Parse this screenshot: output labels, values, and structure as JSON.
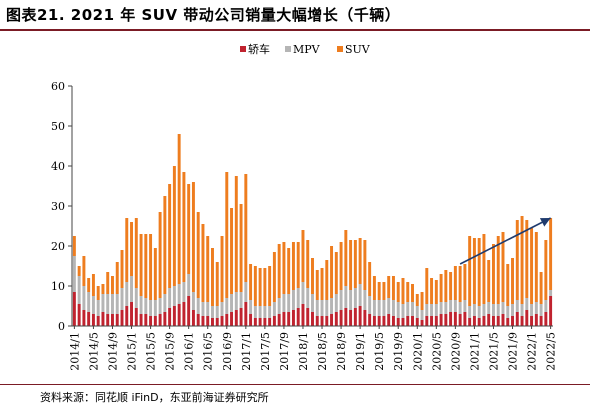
{
  "header": {
    "title": "图表21. 2021 年 SUV 带动公司销量大幅增长（千辆）"
  },
  "footer": {
    "source": "资料来源：同花顺 iFinD，东亚前海证券研究所"
  },
  "colors": {
    "sedan": "#c0232f",
    "mpv": "#b5b5b5",
    "suv": "#ee7d1f",
    "trend_arrow": "#1f3b6e",
    "axis": "#444444",
    "frame": "#7b1b25"
  },
  "chart_data": {
    "type": "bar",
    "stacked": true,
    "title": "",
    "xlabel": "",
    "ylabel": "",
    "ylim": [
      0,
      60
    ],
    "yticks": [
      0,
      10,
      20,
      30,
      40,
      50,
      60
    ],
    "grid": false,
    "legend_position": "top-center",
    "start_month": "2014-01",
    "periods": 101,
    "xtick_labels": [
      "2014/1",
      "2014/5",
      "2014/9",
      "2015/1",
      "2015/5",
      "2015/9",
      "2016/1",
      "2016/5",
      "2016/9",
      "2017/1",
      "2017/5",
      "2017/9",
      "2018/1",
      "2018/5",
      "2018/9",
      "2019/1",
      "2019/5",
      "2019/9",
      "2020/1",
      "2020/5",
      "2020/9",
      "2021/1",
      "2021/5",
      "2021/9",
      "2022/1",
      "2022/5"
    ],
    "series": [
      {
        "name": "轿车",
        "key": "sedan",
        "values": [
          8.5,
          5.5,
          4.0,
          3.5,
          3.0,
          2.5,
          3.5,
          3.0,
          3.0,
          3.0,
          4.0,
          5.0,
          6.0,
          4.5,
          3.0,
          3.0,
          2.5,
          2.5,
          3.0,
          3.5,
          4.5,
          5.0,
          5.5,
          6.0,
          7.5,
          4.0,
          3.0,
          2.5,
          2.5,
          2.0,
          2.0,
          2.5,
          3.0,
          3.5,
          4.0,
          4.5,
          6.0,
          3.0,
          2.0,
          2.0,
          2.0,
          2.0,
          2.5,
          3.0,
          3.5,
          3.5,
          4.0,
          4.5,
          5.5,
          4.5,
          3.5,
          2.5,
          2.5,
          2.5,
          3.0,
          3.5,
          4.0,
          4.5,
          4.0,
          4.5,
          5.0,
          4.0,
          3.0,
          2.5,
          2.5,
          2.5,
          3.0,
          2.5,
          2.0,
          2.0,
          2.5,
          2.5,
          2.0,
          1.5,
          2.5,
          2.5,
          2.5,
          3.0,
          3.0,
          3.5,
          3.5,
          3.0,
          3.5,
          2.0,
          2.5,
          2.0,
          2.5,
          3.0,
          2.5,
          2.5,
          3.0,
          2.0,
          2.5,
          3.5,
          2.5,
          4.0,
          2.5,
          3.0,
          2.5,
          3.5,
          7.5
        ]
      },
      {
        "name": "MPV",
        "key": "mpv",
        "values": [
          9.0,
          7.0,
          6.0,
          5.0,
          4.5,
          4.0,
          4.5,
          5.0,
          5.0,
          5.0,
          5.5,
          6.0,
          6.5,
          5.0,
          4.5,
          4.0,
          4.0,
          4.0,
          4.0,
          4.5,
          5.0,
          5.0,
          5.0,
          5.0,
          5.5,
          4.5,
          4.0,
          3.5,
          3.5,
          3.0,
          3.0,
          3.5,
          4.0,
          4.5,
          4.5,
          4.0,
          5.0,
          3.5,
          3.0,
          3.0,
          3.0,
          3.0,
          3.5,
          4.0,
          4.5,
          4.5,
          5.0,
          5.0,
          5.5,
          5.0,
          4.5,
          4.0,
          4.0,
          4.0,
          4.0,
          4.5,
          5.0,
          5.5,
          5.0,
          5.0,
          5.5,
          5.0,
          4.5,
          4.0,
          4.0,
          4.0,
          4.0,
          4.0,
          4.0,
          3.5,
          3.5,
          3.5,
          3.0,
          2.5,
          3.0,
          3.0,
          3.0,
          3.0,
          3.0,
          3.0,
          3.0,
          3.0,
          3.0,
          3.0,
          3.0,
          3.0,
          3.0,
          3.0,
          3.0,
          3.0,
          3.0,
          3.0,
          3.0,
          3.0,
          3.0,
          3.0,
          3.0,
          3.0,
          3.0,
          3.0,
          1.5
        ]
      },
      {
        "name": "SUV",
        "key": "suv",
        "values": [
          5.0,
          2.5,
          7.5,
          3.5,
          5.5,
          3.5,
          2.5,
          5.5,
          4.5,
          8.0,
          9.5,
          16.0,
          13.5,
          17.5,
          15.5,
          16.0,
          16.5,
          13.0,
          21.5,
          24.5,
          26.0,
          30.0,
          37.5,
          27.5,
          22.5,
          27.5,
          21.5,
          19.5,
          16.5,
          14.5,
          11.0,
          16.5,
          31.5,
          21.5,
          29.0,
          22.0,
          27.0,
          9.0,
          10.0,
          9.5,
          9.5,
          10.0,
          12.5,
          13.5,
          13.0,
          11.5,
          12.0,
          11.5,
          13.0,
          12.0,
          9.0,
          7.5,
          8.0,
          10.0,
          13.0,
          10.5,
          12.0,
          14.0,
          12.5,
          12.0,
          11.5,
          12.5,
          8.5,
          6.0,
          4.5,
          4.5,
          5.5,
          6.0,
          5.0,
          6.5,
          5.0,
          4.5,
          3.0,
          4.5,
          9.0,
          6.5,
          6.0,
          7.0,
          8.0,
          7.0,
          8.5,
          9.0,
          9.0,
          17.5,
          16.5,
          17.0,
          17.5,
          10.5,
          15.0,
          17.0,
          17.5,
          10.5,
          11.5,
          20.0,
          22.0,
          19.5,
          19.0,
          17.5,
          8.0,
          15.0,
          18.0
        ]
      }
    ],
    "annotations": [
      {
        "type": "trend-arrow",
        "from": [
          "2020-10",
          15.5
        ],
        "to": [
          "2022-05",
          27.0
        ]
      }
    ]
  }
}
